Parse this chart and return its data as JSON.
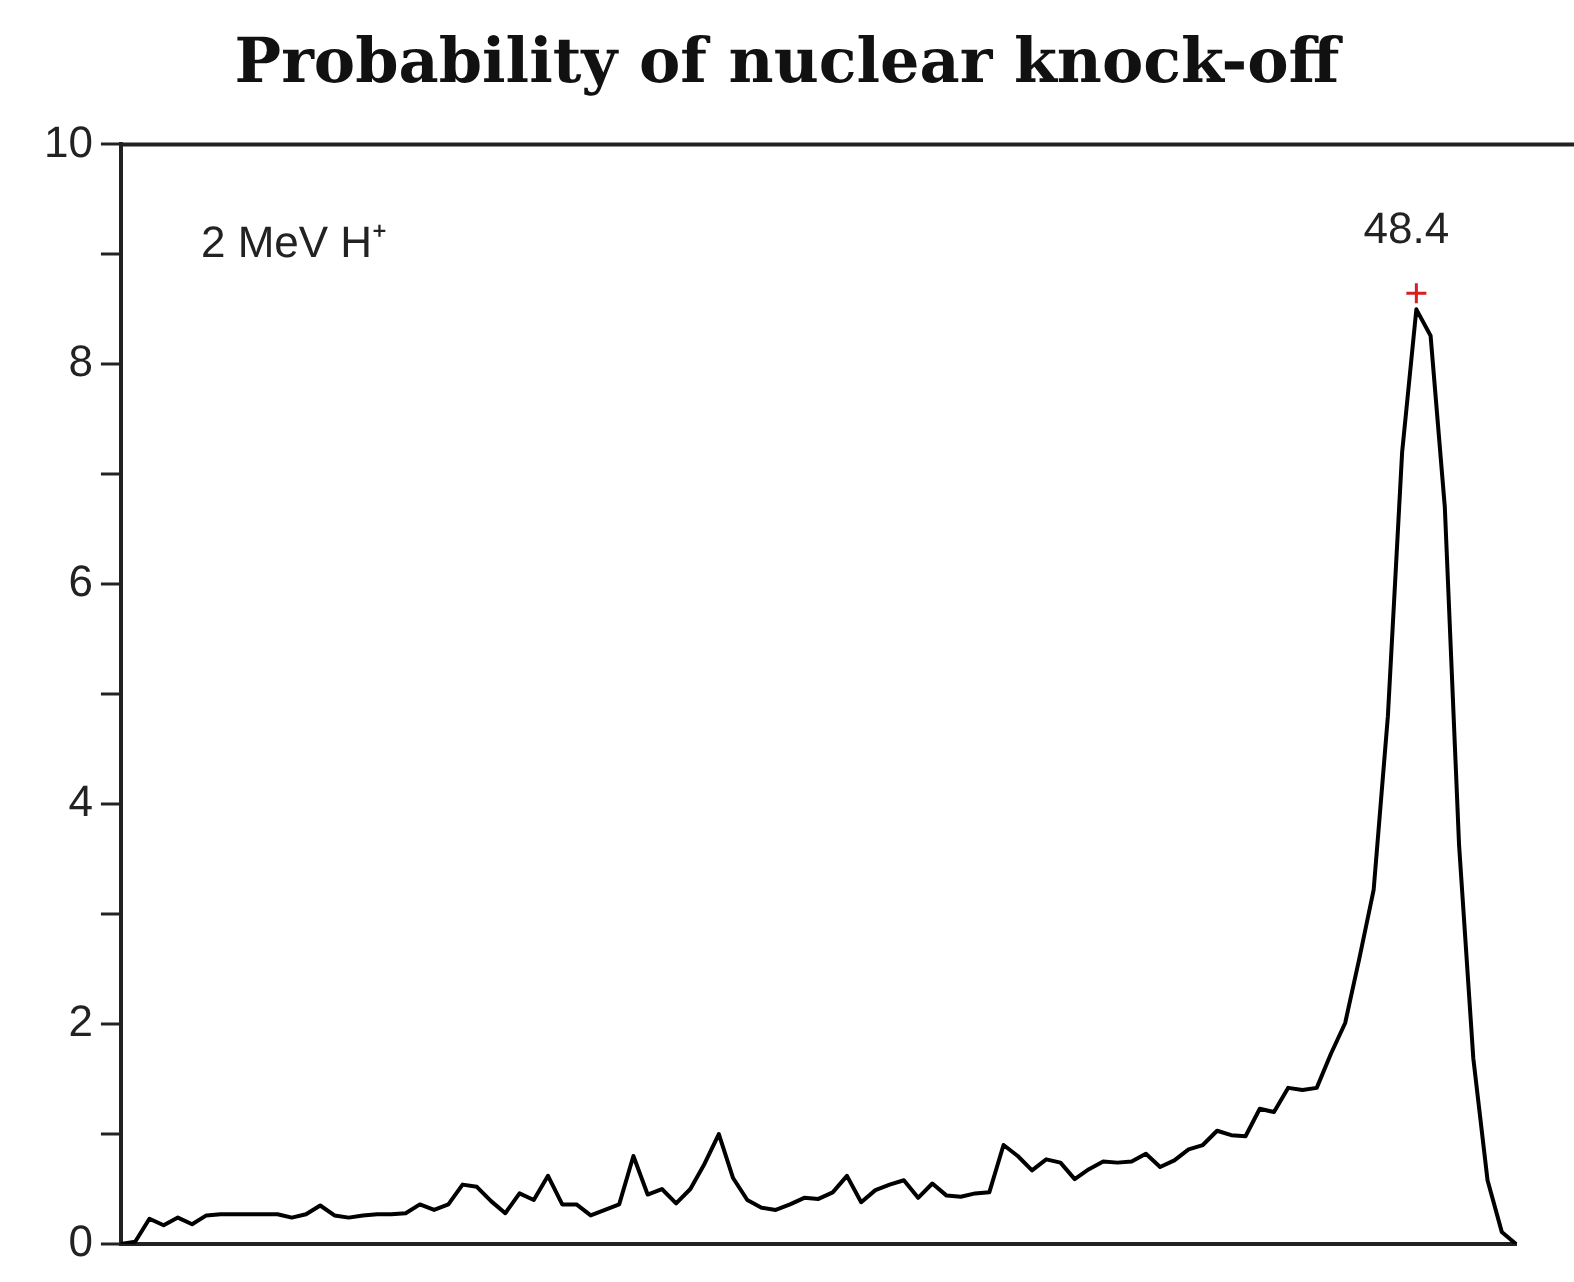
{
  "chart_data": {
    "type": "line",
    "title": "Probability of nuclear knock-off",
    "annotations": [
      "2 MeV H⁺",
      "48.4"
    ],
    "categories": [
      null,
      null,
      null,
      null,
      null,
      null,
      null,
      null,
      null,
      null,
      null,
      null,
      null,
      null,
      null,
      null,
      null,
      null,
      null,
      null,
      null,
      null,
      null,
      null,
      null,
      null,
      null,
      null,
      null,
      null,
      null,
      null,
      null,
      null,
      null,
      null,
      null,
      null,
      null,
      null,
      null,
      null,
      null,
      null,
      null,
      null,
      null,
      null,
      null,
      null,
      null,
      null,
      null,
      null,
      null,
      null,
      null,
      null,
      null,
      null,
      null,
      null,
      null,
      null,
      null,
      null,
      null,
      null,
      null,
      null,
      null,
      null,
      null,
      null,
      null,
      null,
      null,
      null,
      null,
      null,
      null,
      null,
      null,
      null,
      null,
      null,
      null,
      null,
      null,
      null,
      null,
      null,
      null,
      null,
      null,
      null,
      null,
      null,
      null
    ],
    "series": [
      {
        "color": "#000000",
        "values": [
          0,
          0.02,
          0.23,
          0.17,
          0.24,
          0.18,
          0.26,
          0.27,
          0.27,
          0.27,
          0.27,
          0.27,
          0.24,
          0.27,
          0.35,
          0.26,
          0.24,
          0.26,
          0.27,
          0.27,
          0.28,
          0.36,
          0.31,
          0.36,
          0.54,
          0.52,
          0.39,
          0.28,
          0.46,
          0.4,
          0.62,
          0.36,
          0.36,
          0.26,
          0.31,
          0.36,
          0.8,
          0.45,
          0.5,
          0.37,
          0.5,
          0.73,
          1.0,
          0.6,
          0.4,
          0.33,
          0.31,
          0.36,
          0.42,
          0.41,
          0.47,
          0.62,
          0.38,
          0.49,
          0.54,
          0.58,
          0.42,
          0.55,
          0.44,
          0.43,
          0.46,
          0.47,
          0.9,
          0.8,
          0.67,
          0.77,
          0.74,
          0.59,
          0.68,
          0.75,
          0.74,
          0.75,
          0.82,
          0.7,
          0.76,
          0.86,
          0.9,
          1.03,
          0.99,
          0.98,
          1.23,
          1.2,
          1.42,
          1.4,
          1.42,
          1.73,
          2.01,
          2.6,
          3.22,
          4.8,
          7.2,
          8.5,
          8.26,
          6.7,
          3.63,
          1.69,
          0.58,
          0.11,
          0
        ]
      }
    ],
    "ylim": [
      0,
      10
    ],
    "yticks": [
      0,
      {
        "value": 1,
        "label": null
      },
      2,
      {
        "value": 3,
        "label": null
      },
      4,
      {
        "value": 5,
        "label": null
      },
      6,
      {
        "value": 7,
        "label": null
      },
      8,
      {
        "value": 9,
        "label": null
      },
      10
    ],
    "tick_labels": "y",
    "marker": "none",
    "line_style": "solid",
    "grid": false,
    "legend": false
  }
}
